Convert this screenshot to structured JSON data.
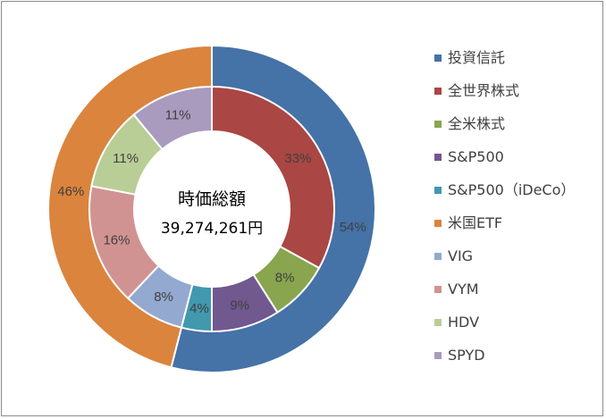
{
  "chart_data": {
    "type": "donut",
    "center_title": "時価総額",
    "center_value": "39,274,261円",
    "outer_ring": {
      "slices": [
        {
          "name": "投資信託",
          "value": 54,
          "label": "54%",
          "color": "#4572A7"
        },
        {
          "name": "米国ETF",
          "value": 46,
          "label": "46%",
          "color": "#DB843D"
        }
      ]
    },
    "inner_ring": {
      "slices": [
        {
          "name": "全世界株式",
          "value": 33,
          "label": "33%",
          "color": "#AA4643"
        },
        {
          "name": "全米株式",
          "value": 8,
          "label": "8%",
          "color": "#89A54E"
        },
        {
          "name": "S&P500",
          "value": 9,
          "label": "9%",
          "color": "#71588F"
        },
        {
          "name": "S&P500（iDeCo）",
          "value": 4,
          "label": "4%",
          "color": "#4198AF"
        },
        {
          "name": "VIG",
          "value": 8,
          "label": "8%",
          "color": "#93A9CF"
        },
        {
          "name": "VYM",
          "value": 16,
          "label": "16%",
          "color": "#D19392"
        },
        {
          "name": "HDV",
          "value": 11,
          "label": "11%",
          "color": "#B9CD96"
        },
        {
          "name": "SPYD",
          "value": 11,
          "label": "11%",
          "color": "#A99BBD"
        }
      ]
    },
    "legend": {
      "position": "right",
      "entries": [
        {
          "name": "投資信託",
          "color": "#4572A7"
        },
        {
          "name": "全世界株式",
          "color": "#AA4643"
        },
        {
          "name": "全米株式",
          "color": "#89A54E"
        },
        {
          "name": "S&P500",
          "color": "#71588F"
        },
        {
          "name": "S&P500（iDeCo）",
          "color": "#4198AF"
        },
        {
          "name": "米国ETF",
          "color": "#DB843D"
        },
        {
          "name": "VIG",
          "color": "#93A9CF"
        },
        {
          "name": "VYM",
          "color": "#D19392"
        },
        {
          "name": "HDV",
          "color": "#B9CD96"
        },
        {
          "name": "SPYD",
          "color": "#A99BBD"
        }
      ]
    }
  }
}
